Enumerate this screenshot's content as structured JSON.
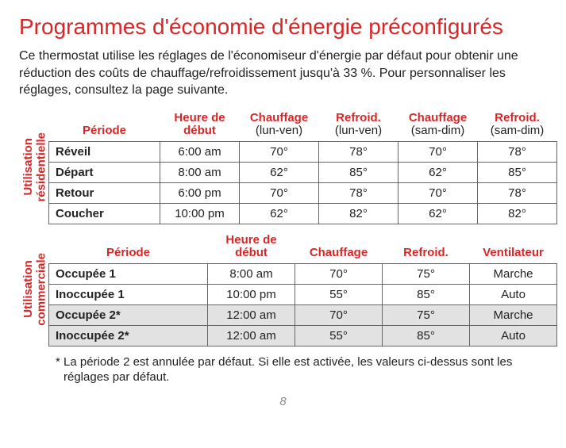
{
  "title": "Programmes d'économie d'énergie préconfigurés",
  "intro": "Ce thermostat utilise les réglages de l'économiseur d'énergie par défaut pour obtenir une réduction des coûts de chauffage/refroidissement jusqu'à 33 %. Pour personnaliser les réglages, consultez la page suivante.",
  "residential": {
    "side_label": "Utilisation\nrésidentielle",
    "headers": {
      "periode": "Période",
      "heure": "Heure de début",
      "chauff_lv_t": "Chauffage",
      "chauff_lv_s": "(lun-ven)",
      "refr_lv_t": "Refroid.",
      "refr_lv_s": "(lun-ven)",
      "chauff_sd_t": "Chauffage",
      "chauff_sd_s": "(sam-dim)",
      "refr_sd_t": "Refroid.",
      "refr_sd_s": "(sam-dim)"
    },
    "rows": [
      {
        "p": "Réveil",
        "h": "6:00 am",
        "c1": "70°",
        "r1": "78°",
        "c2": "70°",
        "r2": "78°"
      },
      {
        "p": "Départ",
        "h": "8:00 am",
        "c1": "62°",
        "r1": "85°",
        "c2": "62°",
        "r2": "85°"
      },
      {
        "p": "Retour",
        "h": "6:00 pm",
        "c1": "70°",
        "r1": "78°",
        "c2": "70°",
        "r2": "78°"
      },
      {
        "p": "Coucher",
        "h": "10:00 pm",
        "c1": "62°",
        "r1": "82°",
        "c2": "62°",
        "r2": "82°"
      }
    ],
    "col_widths": [
      "140px",
      "100px",
      "100px",
      "100px",
      "100px",
      "100px"
    ]
  },
  "commercial": {
    "side_label": "Utilisation\ncommerciale",
    "headers": {
      "periode": "Période",
      "heure": "Heure de début",
      "chauff": "Chauffage",
      "refr": "Refroid.",
      "vent": "Ventilateur"
    },
    "rows": [
      {
        "p": "Occupée 1",
        "h": "8:00 am",
        "c": "70°",
        "r": "75°",
        "v": "Marche",
        "shade": false
      },
      {
        "p": "Inoccupée 1",
        "h": "10:00 pm",
        "c": "55°",
        "r": "85°",
        "v": "Auto",
        "shade": false
      },
      {
        "p": "Occupée 2*",
        "h": "12:00 am",
        "c": "70°",
        "r": "75°",
        "v": "Marche",
        "shade": true
      },
      {
        "p": "Inoccupée 2*",
        "h": "12:00 am",
        "c": "55°",
        "r": "85°",
        "v": "Auto",
        "shade": true
      }
    ],
    "col_widths": [
      "200px",
      "110px",
      "110px",
      "110px",
      "110px"
    ]
  },
  "footnote": "* La période 2 est annulée par défaut. Si elle est activée, les valeurs ci-dessus sont les réglages par défaut.",
  "page_number": "8",
  "colors": {
    "accent": "#d72626",
    "text": "#222222",
    "border": "#666666",
    "shade": "#e2e2e2",
    "bg": "#ffffff"
  }
}
